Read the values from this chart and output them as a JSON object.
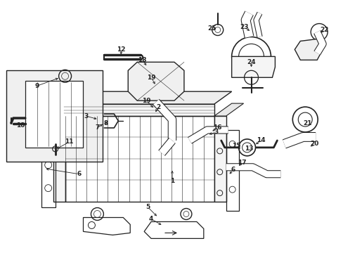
{
  "bg_color": "#ffffff",
  "lc": "#222222",
  "fig_w": 4.89,
  "fig_h": 3.6,
  "dpi": 100,
  "labels": [
    [
      "1",
      245,
      255,
      260,
      270
    ],
    [
      "2",
      225,
      155,
      235,
      165
    ],
    [
      "3",
      128,
      167,
      148,
      172
    ],
    [
      "3",
      305,
      185,
      290,
      192
    ],
    [
      "4",
      220,
      312,
      235,
      318
    ],
    [
      "5",
      220,
      292,
      235,
      300
    ],
    [
      "6",
      118,
      250,
      132,
      245
    ],
    [
      "6",
      330,
      245,
      315,
      248
    ],
    [
      "7",
      140,
      185,
      148,
      192
    ],
    [
      "8",
      150,
      178,
      155,
      185
    ],
    [
      "9",
      55,
      122,
      72,
      128
    ],
    [
      "10",
      30,
      175,
      45,
      182
    ],
    [
      "11",
      100,
      200,
      108,
      203
    ],
    [
      "12",
      175,
      72,
      190,
      80
    ],
    [
      "13",
      352,
      210,
      342,
      215
    ],
    [
      "14",
      368,
      200,
      355,
      208
    ],
    [
      "15",
      338,
      208,
      328,
      213
    ],
    [
      "16",
      305,
      185,
      318,
      195
    ],
    [
      "17",
      340,
      232,
      328,
      230
    ],
    [
      "18",
      205,
      88,
      218,
      97
    ],
    [
      "19",
      215,
      112,
      225,
      120
    ],
    [
      "19",
      208,
      143,
      222,
      148
    ],
    [
      "20",
      448,
      205,
      438,
      210
    ],
    [
      "21",
      435,
      175,
      428,
      180
    ],
    [
      "22",
      462,
      45,
      452,
      52
    ],
    [
      "23",
      345,
      40,
      358,
      50
    ],
    [
      "24",
      355,
      88,
      365,
      95
    ],
    [
      "25",
      300,
      42,
      312,
      50
    ]
  ]
}
